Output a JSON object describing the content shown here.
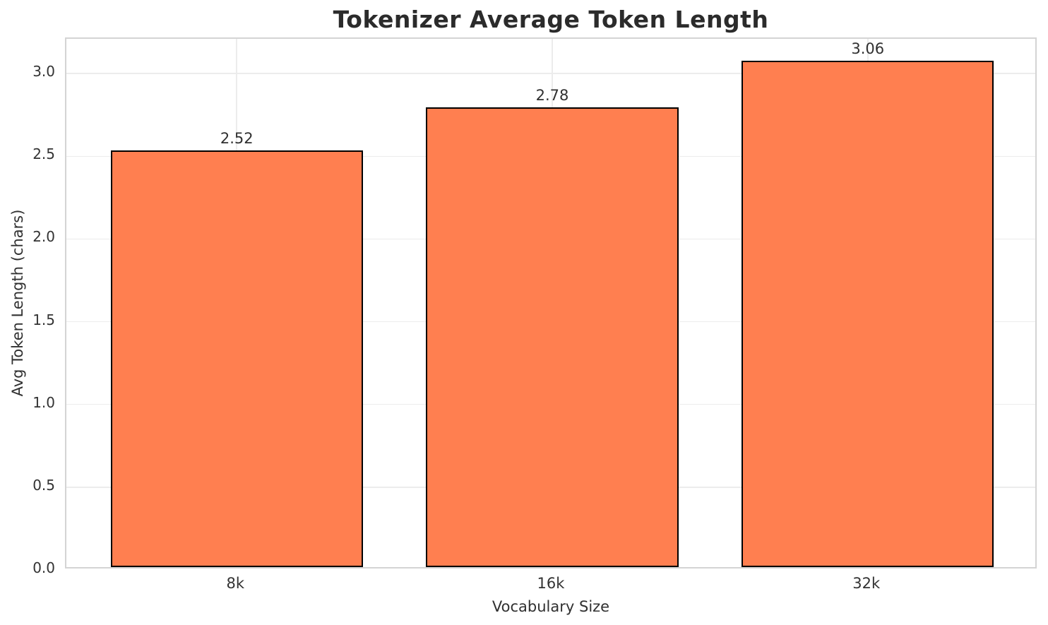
{
  "chart_data": {
    "type": "bar",
    "title": "Tokenizer Average Token Length",
    "xlabel": "Vocabulary Size",
    "ylabel": "Avg Token Length (chars)",
    "categories": [
      "8k",
      "16k",
      "32k"
    ],
    "values": [
      2.52,
      2.78,
      3.06
    ],
    "value_labels": [
      "2.52",
      "2.78",
      "3.06"
    ],
    "yticks": [
      0.0,
      0.5,
      1.0,
      1.5,
      2.0,
      2.5,
      3.0
    ],
    "ytick_labels": [
      "0.0",
      "0.5",
      "1.0",
      "1.5",
      "2.0",
      "2.5",
      "3.0"
    ],
    "ylim": [
      0,
      3.21
    ],
    "xlim": [
      -0.54,
      2.54
    ],
    "bar_width": 0.8,
    "grid": true,
    "bar_color": "#FF7F50",
    "bar_edge_color": "#000000",
    "grid_color": "#ececec",
    "spine_color": "#d4d4d4",
    "text_color": "#303030"
  }
}
